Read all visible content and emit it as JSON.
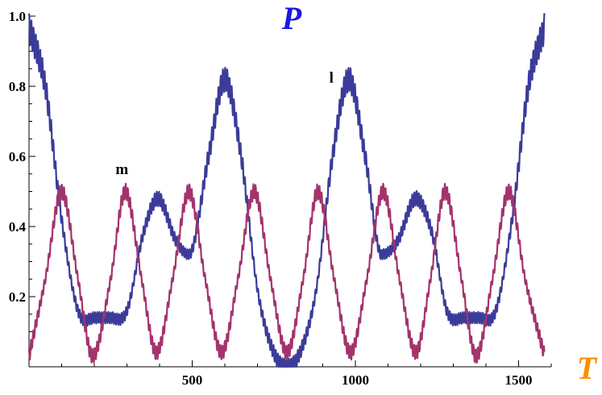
{
  "chart_data": {
    "type": "line",
    "title": "",
    "xlabel": "T",
    "ylabel": "P",
    "xlim": [
      0,
      1600
    ],
    "ylim": [
      0,
      1.0
    ],
    "xticks": [
      500,
      1000,
      1500
    ],
    "yticks": [
      0.2,
      0.4,
      0.6,
      0.8,
      1.0
    ],
    "xtick_labels": [
      "500",
      "1000",
      "1500"
    ],
    "ytick_labels": [
      "0.2",
      "0.4",
      "0.6",
      "0.8",
      "1.0"
    ],
    "grid": false,
    "colors": {
      "xlabel": "#ff8c00",
      "ylabel": "#1a1ae6"
    },
    "series": [
      {
        "name": "l",
        "color": "#3b3b9a",
        "x": [
          0,
          50,
          100,
          150,
          200,
          250,
          300,
          350,
          395,
          450,
          490,
          550,
          600,
          650,
          700,
          750,
          790,
          830,
          880,
          930,
          980,
          1030,
          1080,
          1130,
          1185,
          1235,
          1280,
          1330,
          1380,
          1430,
          1480,
          1530,
          1580
        ],
        "y": [
          0.97,
          0.8,
          0.42,
          0.16,
          0.14,
          0.14,
          0.16,
          0.38,
          0.48,
          0.36,
          0.32,
          0.6,
          0.82,
          0.6,
          0.22,
          0.04,
          0.0,
          0.04,
          0.22,
          0.6,
          0.82,
          0.6,
          0.32,
          0.36,
          0.48,
          0.38,
          0.16,
          0.14,
          0.14,
          0.16,
          0.42,
          0.8,
          0.97
        ]
      },
      {
        "name": "m",
        "color": "#a3336b",
        "x": [
          0,
          50,
          100,
          150,
          195,
          250,
          295,
          345,
          390,
          440,
          490,
          540,
          590,
          640,
          690,
          740,
          790,
          840,
          885,
          935,
          985,
          1035,
          1085,
          1135,
          1185,
          1230,
          1275,
          1325,
          1370,
          1420,
          1470,
          1520,
          1580
        ],
        "y": [
          0.03,
          0.25,
          0.5,
          0.25,
          0.03,
          0.25,
          0.5,
          0.25,
          0.04,
          0.25,
          0.5,
          0.25,
          0.04,
          0.25,
          0.5,
          0.25,
          0.04,
          0.25,
          0.5,
          0.25,
          0.04,
          0.25,
          0.5,
          0.25,
          0.04,
          0.25,
          0.5,
          0.25,
          0.03,
          0.25,
          0.5,
          0.25,
          0.03
        ]
      }
    ],
    "annotations": [
      {
        "text": "l",
        "x": 920,
        "y": 0.81
      },
      {
        "text": "m",
        "x": 265,
        "y": 0.55
      }
    ]
  }
}
